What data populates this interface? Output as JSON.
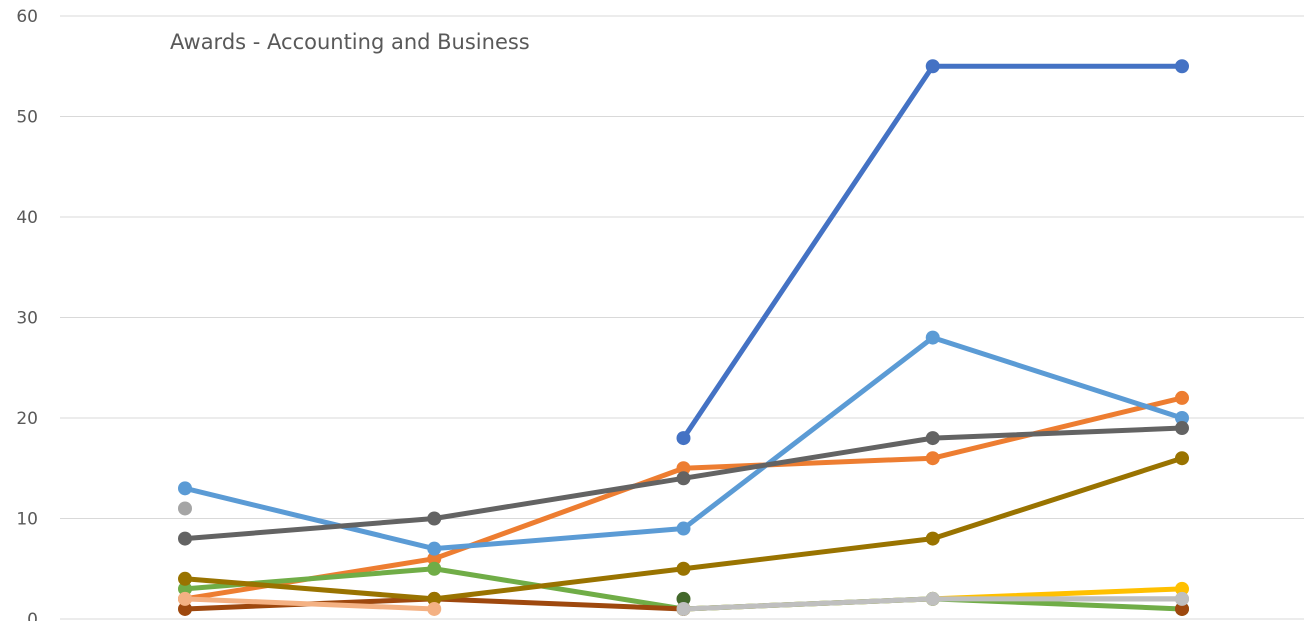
{
  "chart_data": {
    "type": "line",
    "title": "Awards - Accounting and Business",
    "xlabel": "",
    "ylabel": "",
    "categories": [
      "",
      "",
      "",
      "",
      ""
    ],
    "ylim": [
      0,
      60
    ],
    "yticks": [
      0,
      10,
      20,
      30,
      40,
      50,
      60
    ],
    "grid": true,
    "legend": "none",
    "series": [
      {
        "color": "#4472C4",
        "values": [
          null,
          null,
          18,
          55,
          55
        ]
      },
      {
        "color": "#ED7D31",
        "values": [
          2,
          6,
          15,
          16,
          22
        ]
      },
      {
        "color": "#A5A5A5",
        "values": [
          11,
          null,
          1,
          2,
          2
        ]
      },
      {
        "color": "#FFC000",
        "values": [
          null,
          null,
          1,
          2,
          3
        ]
      },
      {
        "color": "#5B9BD5",
        "values": [
          13,
          7,
          9,
          28,
          20
        ]
      },
      {
        "color": "#70AD47",
        "values": [
          3,
          5,
          1,
          2,
          1
        ]
      },
      {
        "color": "#264478",
        "values": [
          null,
          null,
          null,
          null,
          null
        ]
      },
      {
        "color": "#9E480E",
        "values": [
          1,
          2,
          1,
          null,
          1
        ]
      },
      {
        "color": "#636363",
        "values": [
          8,
          10,
          14,
          18,
          19
        ]
      },
      {
        "color": "#997300",
        "values": [
          4,
          2,
          5,
          8,
          16
        ]
      },
      {
        "color": "#43682B",
        "values": [
          null,
          null,
          2,
          null,
          null
        ]
      },
      {
        "color": "#F4B183",
        "values": [
          2,
          1,
          null,
          null,
          null
        ]
      },
      {
        "color": "#BFBFBF",
        "values": [
          null,
          null,
          1,
          2,
          2
        ]
      }
    ]
  }
}
